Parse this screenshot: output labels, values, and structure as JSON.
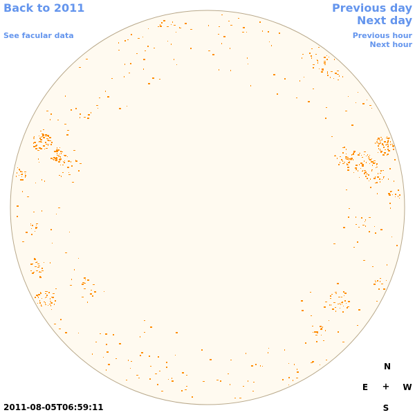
{
  "nav": {
    "back_label": "Back to 2011",
    "facular_label": "See facular data",
    "prev_day_label": "Previous day",
    "next_day_label": "Next day",
    "prev_hour_label": "Previous hour",
    "next_hour_label": "Next hour",
    "link_color": "#6495ed"
  },
  "timestamp": "2011-08-05T06:59:11",
  "compass": {
    "north": "N",
    "south": "S",
    "east": "E",
    "west": "W",
    "center": "+"
  },
  "map": {
    "disk_fill": "#fffaf0",
    "disk_outline": "#b8a88a",
    "faculae_color": "#ff8c00"
  }
}
